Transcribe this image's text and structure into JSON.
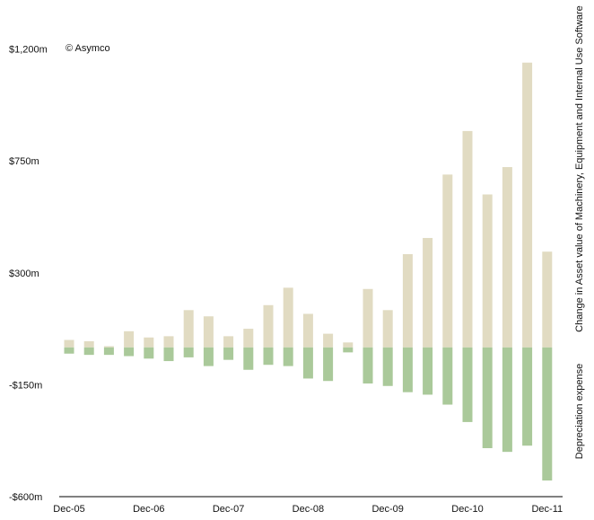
{
  "chart_data": {
    "type": "bar",
    "credit": "© Asymco",
    "y_tick_labels": [
      "$1,200m",
      "$750m",
      "$300m",
      "-$150m",
      "-$600m"
    ],
    "y_tick_values": [
      1200,
      750,
      300,
      -150,
      -600
    ],
    "x_tick_labels": [
      "Dec-05",
      "Dec-06",
      "Dec-07",
      "Dec-08",
      "Dec-09",
      "Dec-10",
      "Dec-11"
    ],
    "x_tick_positions": [
      1,
      5,
      9,
      13,
      17,
      21,
      25
    ],
    "ylim": [
      -600,
      1200
    ],
    "grid": false,
    "series": [
      {
        "name": "Change in Asset value of Machinery, Equipment and Internal Use Software",
        "color": "#e1dbc2",
        "values": [
          30,
          25,
          5,
          65,
          40,
          45,
          150,
          125,
          45,
          75,
          170,
          240,
          135,
          55,
          20,
          235,
          150,
          375,
          440,
          695,
          870,
          615,
          725,
          1145,
          385
        ]
      },
      {
        "name": "Depreciation expense",
        "color": "#aac99a",
        "values": [
          -25,
          -30,
          -30,
          -35,
          -45,
          -55,
          -40,
          -75,
          -50,
          -90,
          -70,
          -75,
          -125,
          -135,
          -20,
          -145,
          -155,
          -180,
          -190,
          -230,
          -300,
          -405,
          -420,
          -395,
          -535
        ]
      }
    ]
  }
}
